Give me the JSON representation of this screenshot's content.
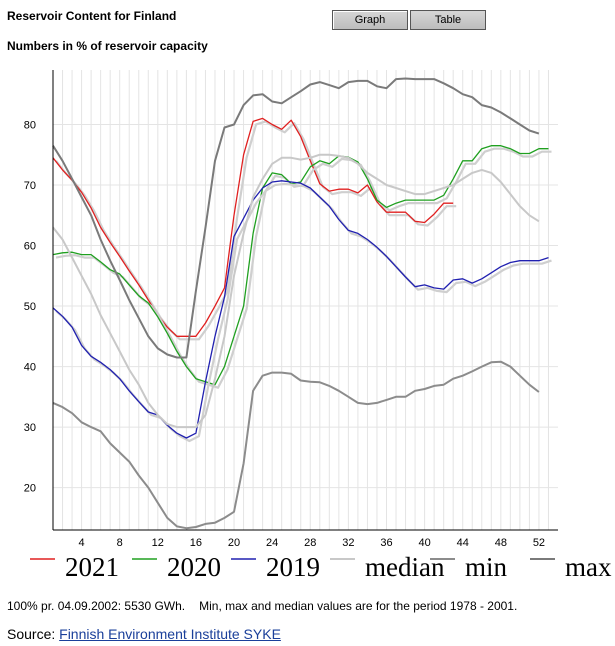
{
  "header": {
    "title": "Reservoir Content for Finland",
    "subtitle": "Numbers in % of reservoir capacity"
  },
  "tabs": {
    "graph": "Graph",
    "table": "Table"
  },
  "footer": {
    "note_capacity": "100% pr. 04.09.2002: 5530 GWh.",
    "note_period": "Min, max and median values are for the period 1978 - 2001.",
    "source_label": "Source:",
    "source_link": "Finnish Environment Institute SYKE"
  },
  "chart_data": {
    "type": "line",
    "title": "Reservoir Content for Finland",
    "ylabel": "Numbers in % of reservoir capacity",
    "xlabel": "",
    "xlim": [
      1,
      54
    ],
    "ylim": [
      13,
      89
    ],
    "x_ticks": [
      4,
      8,
      12,
      16,
      20,
      24,
      28,
      32,
      36,
      40,
      44,
      48,
      52
    ],
    "y_ticks": [
      20,
      30,
      40,
      50,
      60,
      70,
      80
    ],
    "grid": true,
    "legend_position": "bottom",
    "series": [
      {
        "name": "2021",
        "color": "#e02020",
        "shadow": true,
        "x": [
          1,
          2,
          3,
          4,
          5,
          6,
          7,
          8,
          9,
          10,
          11,
          12,
          13,
          14,
          15,
          16,
          17,
          18,
          19,
          20,
          21,
          22,
          23,
          24,
          25,
          26,
          27,
          28,
          29,
          30,
          31,
          32,
          33,
          34,
          35,
          36,
          37,
          38,
          39,
          40,
          41,
          42,
          43
        ],
        "values": [
          74.5,
          72.5,
          70.8,
          68.8,
          66.2,
          63,
          60.5,
          58.2,
          55.8,
          53.5,
          51,
          48.5,
          46.5,
          45,
          45,
          45,
          47.2,
          50,
          53,
          65,
          75,
          80.5,
          81,
          80,
          79.2,
          80.7,
          78,
          74,
          70.2,
          69,
          69.3,
          69.3,
          68.7,
          70,
          67.2,
          65.5,
          65.5,
          65.5,
          64,
          63.8,
          65.2,
          67,
          67
        ]
      },
      {
        "name": "2020",
        "color": "#20a020",
        "shadow": true,
        "x": [
          1,
          2,
          3,
          4,
          5,
          6,
          7,
          8,
          9,
          10,
          11,
          12,
          13,
          14,
          15,
          16,
          17,
          18,
          19,
          20,
          21,
          22,
          23,
          24,
          25,
          26,
          27,
          28,
          29,
          30,
          31,
          32,
          33,
          34,
          35,
          36,
          37,
          38,
          39,
          40,
          41,
          42,
          43,
          44,
          45,
          46,
          47,
          48,
          49,
          50,
          51,
          52,
          53
        ],
        "values": [
          58.5,
          58.8,
          58.9,
          58.5,
          58.5,
          57.3,
          56,
          55.3,
          53.5,
          51.7,
          50.5,
          48.2,
          45.5,
          42.5,
          40,
          38,
          37.5,
          37,
          40,
          45,
          50,
          62,
          69.5,
          72,
          71.7,
          70.2,
          70.5,
          73,
          74,
          73.5,
          74.8,
          74.6,
          73.8,
          71,
          67.5,
          66.3,
          67,
          67.5,
          67.5,
          67.5,
          67.5,
          68.3,
          71,
          74,
          74,
          76,
          76.5,
          76.5,
          76,
          75.2,
          75.2,
          76,
          76
        ]
      },
      {
        "name": "2019",
        "color": "#2020b0",
        "shadow": true,
        "x": [
          1,
          2,
          3,
          4,
          5,
          6,
          7,
          8,
          9,
          10,
          11,
          12,
          13,
          14,
          15,
          16,
          17,
          18,
          19,
          20,
          21,
          22,
          23,
          24,
          25,
          26,
          27,
          28,
          29,
          30,
          31,
          32,
          33,
          34,
          35,
          36,
          37,
          38,
          39,
          40,
          41,
          42,
          43,
          44,
          45,
          46,
          47,
          48,
          49,
          50,
          51,
          52,
          53
        ],
        "values": [
          49.7,
          48.3,
          46.5,
          43.5,
          41.7,
          40.7,
          39.5,
          38,
          36,
          34.2,
          32.5,
          32,
          30.3,
          29,
          28.2,
          29,
          37.5,
          45,
          51.5,
          61.5,
          64.5,
          67.5,
          69.5,
          70.5,
          70.7,
          70.5,
          70.3,
          69.5,
          68,
          66.5,
          64.3,
          62.5,
          62,
          61,
          59.7,
          58.2,
          56.5,
          54.8,
          53.2,
          53.5,
          53,
          52.8,
          54.3,
          54.5,
          53.8,
          54.5,
          55.5,
          56.5,
          57.2,
          57.5,
          57.5,
          57.5,
          58
        ]
      },
      {
        "name": "median",
        "color": "#c8c8c8",
        "shadow": false,
        "x": [
          1,
          2,
          3,
          4,
          5,
          6,
          7,
          8,
          9,
          10,
          11,
          12,
          13,
          14,
          15,
          16,
          17,
          18,
          19,
          20,
          21,
          22,
          23,
          24,
          25,
          26,
          27,
          28,
          29,
          30,
          31,
          32,
          33,
          34,
          35,
          36,
          37,
          38,
          39,
          40,
          41,
          42,
          43,
          44,
          45,
          46,
          47,
          48,
          49,
          50,
          51,
          52
        ],
        "values": [
          63,
          61,
          58,
          55,
          52,
          48.5,
          45.5,
          42.5,
          39.5,
          37,
          34,
          32,
          30.5,
          30,
          30,
          30,
          32,
          38,
          45,
          55,
          62,
          68,
          71,
          73.5,
          74.5,
          74.5,
          74.2,
          74.5,
          75,
          75,
          74.8,
          74.5,
          73.5,
          72,
          71,
          70,
          69.5,
          69,
          68.5,
          68.5,
          69,
          69.5,
          70,
          71,
          72,
          72.5,
          72,
          70.5,
          68.5,
          66.5,
          65,
          64
        ]
      },
      {
        "name": "min",
        "color": "#8c8c8c",
        "shadow": false,
        "x": [
          1,
          2,
          3,
          4,
          5,
          6,
          7,
          8,
          9,
          10,
          11,
          12,
          13,
          14,
          15,
          16,
          17,
          18,
          19,
          20,
          21,
          22,
          23,
          24,
          25,
          26,
          27,
          28,
          29,
          30,
          31,
          32,
          33,
          34,
          35,
          36,
          37,
          38,
          39,
          40,
          41,
          42,
          43,
          44,
          45,
          46,
          47,
          48,
          49,
          50,
          51,
          52
        ],
        "values": [
          34,
          33.3,
          32.3,
          30.8,
          30,
          29.3,
          27.3,
          25.8,
          24.3,
          22,
          20,
          17.5,
          15,
          13.6,
          13.3,
          13.5,
          14,
          14.2,
          15,
          16,
          24,
          36,
          38.5,
          39,
          39,
          38.8,
          37.7,
          37.5,
          37.4,
          36.8,
          36,
          35,
          34,
          33.8,
          34,
          34.5,
          35,
          35,
          36,
          36.3,
          36.8,
          37,
          38,
          38.5,
          39.2,
          40,
          40.7,
          40.8,
          40,
          38.5,
          37,
          35.8
        ]
      },
      {
        "name": "max",
        "color": "#7a7a7a",
        "shadow": false,
        "x": [
          1,
          2,
          3,
          4,
          5,
          6,
          7,
          8,
          9,
          10,
          11,
          12,
          13,
          14,
          15,
          16,
          17,
          18,
          19,
          20,
          21,
          22,
          23,
          24,
          25,
          26,
          27,
          28,
          29,
          30,
          31,
          32,
          33,
          34,
          35,
          36,
          37,
          38,
          39,
          40,
          41,
          42,
          43,
          44,
          45,
          46,
          47,
          48,
          49,
          50,
          51,
          52
        ],
        "values": [
          76.5,
          74,
          71,
          68,
          65,
          61,
          57.5,
          54.3,
          51,
          48,
          45,
          43,
          42,
          41.5,
          41.5,
          52.5,
          63,
          74,
          79.5,
          80,
          83.2,
          84.8,
          85,
          83.8,
          83.5,
          84.5,
          85.5,
          86.6,
          87,
          86.5,
          86,
          87,
          87.2,
          87.2,
          86.3,
          86,
          87.5,
          87.6,
          87.5,
          87.5,
          87.5,
          86.8,
          86,
          85,
          84.5,
          83.2,
          82.8,
          82,
          81,
          80,
          79,
          78.5
        ]
      }
    ]
  }
}
